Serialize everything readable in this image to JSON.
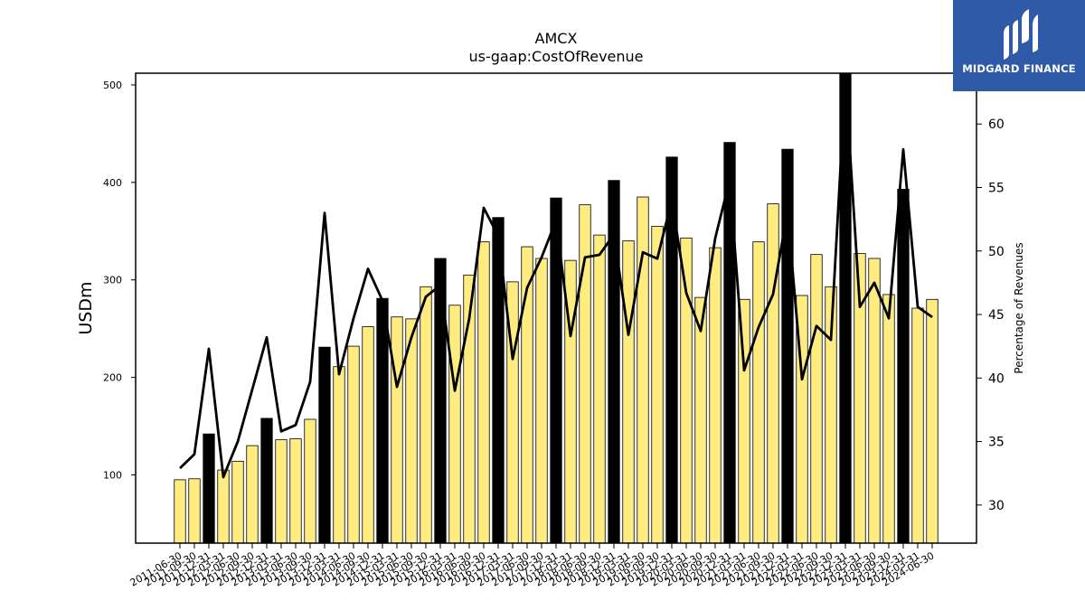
{
  "chart_data": {
    "type": "bar",
    "title": "AMCX",
    "subtitle": "us-gaap:CostOfRevenue",
    "ylabel": "USDm",
    "y2label": "Percentage of Revenues",
    "ylim": [
      30,
      512
    ],
    "y2lim": [
      27,
      64
    ],
    "yticks": [
      100,
      200,
      300,
      400,
      500
    ],
    "y2ticks": [
      30,
      35,
      40,
      45,
      50,
      55,
      60
    ],
    "categories": [
      "2011-06-30",
      "2011-09-30",
      "2011-12-31",
      "2012-03-31",
      "2012-06-30",
      "2012-09-30",
      "2012-12-31",
      "2013-03-31",
      "2013-06-30",
      "2013-09-30",
      "2013-12-31",
      "2014-03-31",
      "2014-06-30",
      "2014-09-30",
      "2014-12-31",
      "2015-03-31",
      "2015-06-30",
      "2015-09-30",
      "2015-12-31",
      "2016-03-31",
      "2016-06-30",
      "2016-09-30",
      "2016-12-31",
      "2017-03-31",
      "2017-06-30",
      "2017-09-30",
      "2017-12-31",
      "2018-03-31",
      "2018-06-30",
      "2018-09-30",
      "2018-12-31",
      "2019-03-31",
      "2019-06-30",
      "2019-09-30",
      "2019-12-31",
      "2020-03-31",
      "2020-06-30",
      "2020-09-30",
      "2020-12-31",
      "2021-03-31",
      "2021-06-30",
      "2021-09-30",
      "2021-12-31",
      "2022-03-31",
      "2022-06-30",
      "2022-09-30",
      "2022-12-31",
      "2023-03-31",
      "2023-06-30",
      "2023-09-30",
      "2023-12-31",
      "2024-03-31",
      "2024-06-30"
    ],
    "series": [
      {
        "type": "bar",
        "values": [
          95,
          96,
          142,
          105,
          114,
          130,
          158,
          136,
          137,
          157,
          231,
          211,
          232,
          252,
          281,
          262,
          260,
          293,
          322,
          274,
          305,
          339,
          364,
          298,
          334,
          322,
          384,
          320,
          377,
          346,
          402,
          340,
          385,
          355,
          426,
          343,
          282,
          333,
          441,
          280,
          339,
          378,
          434,
          284,
          326,
          293,
          512,
          327,
          322,
          285,
          393,
          271,
          280
        ],
        "colors": [
          "#ffec80",
          "#ffec80",
          "#000000",
          "#ffec80",
          "#ffec80",
          "#ffec80",
          "#000000",
          "#ffec80",
          "#ffec80",
          "#ffec80",
          "#000000",
          "#ffec80",
          "#ffec80",
          "#ffec80",
          "#000000",
          "#ffec80",
          "#ffec80",
          "#ffec80",
          "#000000",
          "#ffec80",
          "#ffec80",
          "#ffec80",
          "#000000",
          "#ffec80",
          "#ffec80",
          "#ffec80",
          "#000000",
          "#ffec80",
          "#ffec80",
          "#ffec80",
          "#000000",
          "#ffec80",
          "#ffec80",
          "#ffec80",
          "#000000",
          "#ffec80",
          "#ffec80",
          "#ffec80",
          "#000000",
          "#ffec80",
          "#ffec80",
          "#ffec80",
          "#000000",
          "#ffec80",
          "#ffec80",
          "#ffec80",
          "#000000",
          "#ffec80",
          "#ffec80",
          "#ffec80",
          "#000000",
          "#ffec80",
          "#ffec80"
        ]
      },
      {
        "type": "line",
        "axis": "right",
        "color": "#000000",
        "values": [
          32.9,
          34.0,
          42.3,
          32.2,
          35.0,
          39.1,
          43.2,
          35.8,
          36.3,
          39.7,
          53.0,
          40.3,
          44.7,
          48.6,
          46.1,
          39.3,
          43.2,
          46.4,
          47.3,
          39.0,
          44.7,
          53.4,
          51.2,
          41.5,
          47.1,
          49.5,
          52.4,
          43.3,
          49.5,
          49.7,
          51.3,
          43.4,
          49.9,
          49.4,
          54.0,
          46.7,
          43.7,
          51.0,
          55.6,
          40.6,
          44.0,
          46.6,
          53.1,
          39.9,
          44.1,
          43.0,
          63.5,
          45.6,
          47.5,
          44.7,
          58.0,
          45.6,
          44.8
        ]
      }
    ],
    "bar_edge_color": "#000000",
    "grid": false,
    "legend": "none"
  },
  "logo": {
    "text": "MIDGARD FINANCE",
    "background": "#2f5aa8",
    "text_color": "#ffffff"
  }
}
